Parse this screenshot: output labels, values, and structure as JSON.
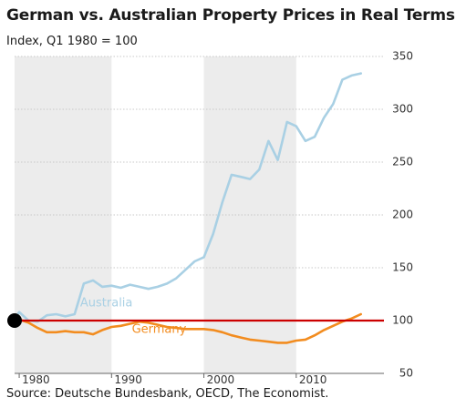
{
  "header": {
    "title": "German vs. Australian Property Prices in Real Terms",
    "subtitle": "Index, Q1 1980 = 100"
  },
  "footer": {
    "source": "Source: Deutsche Bundesbank, OECD, The Economist."
  },
  "colors": {
    "australia": "#a9d0e4",
    "germany": "#f28c1f",
    "reference_line": "#cc0000",
    "shaded_band": "#ececec",
    "marker": "#000000"
  },
  "chart_data": {
    "type": "line",
    "title": "German vs. Australian Property Prices in Real Terms",
    "subtitle": "Index, Q1 1980 = 100",
    "xlabel": "",
    "ylabel": "",
    "xlim": [
      1979.5,
      2019.5
    ],
    "ylim": [
      50,
      350
    ],
    "x_ticks": [
      1980,
      1990,
      2000,
      2010
    ],
    "x_tick_labels": [
      "1980",
      "1990",
      "2000",
      "2010"
    ],
    "y_ticks": [
      50,
      100,
      150,
      200,
      250,
      300,
      350
    ],
    "y_tick_labels": [
      "50",
      "100",
      "150",
      "200",
      "250",
      "300",
      "350"
    ],
    "y_axis_side": "right",
    "shaded_decades": [
      [
        1979.5,
        1990
      ],
      [
        2000,
        2010
      ]
    ],
    "reference_line": 100,
    "marker_point": [
      1979.5,
      100
    ],
    "series": [
      {
        "name": "Australia",
        "label_position": [
          1986.6,
          121
        ],
        "x": [
          1979.5,
          1980,
          1981,
          1982,
          1983,
          1984,
          1985,
          1986,
          1987,
          1988,
          1989,
          1990,
          1991,
          1992,
          1993,
          1994,
          1995,
          1996,
          1997,
          1998,
          1999,
          2000,
          2001,
          2002,
          2003,
          2004,
          2005,
          2006,
          2007,
          2008,
          2009,
          2010,
          2011,
          2012,
          2013,
          2014,
          2015,
          2016,
          2017
        ],
        "values": [
          102,
          108,
          100,
          99,
          105,
          106,
          104,
          106,
          135,
          138,
          132,
          133,
          131,
          134,
          132,
          130,
          132,
          135,
          140,
          148,
          156,
          160,
          182,
          212,
          238,
          236,
          234,
          243,
          270,
          252,
          288,
          284,
          270,
          274,
          292,
          305,
          328,
          332,
          334
        ]
      },
      {
        "name": "Germany",
        "label_position": [
          1992.2,
          96
        ],
        "x": [
          1979.5,
          1980,
          1981,
          1982,
          1983,
          1984,
          1985,
          1986,
          1987,
          1988,
          1989,
          1990,
          1991,
          1992,
          1993,
          1994,
          1995,
          1996,
          1997,
          1998,
          1999,
          2000,
          2001,
          2002,
          2003,
          2004,
          2005,
          2006,
          2007,
          2008,
          2009,
          2010,
          2011,
          2012,
          2013,
          2014,
          2015,
          2016,
          2017
        ],
        "values": [
          100,
          101,
          98,
          93,
          89,
          89,
          90,
          89,
          89,
          87,
          91,
          94,
          95,
          97,
          99,
          98,
          96,
          94,
          93,
          92,
          92,
          92,
          91,
          89,
          86,
          84,
          82,
          81,
          80,
          79,
          79,
          81,
          82,
          86,
          91,
          95,
          99,
          102,
          106
        ]
      }
    ]
  }
}
